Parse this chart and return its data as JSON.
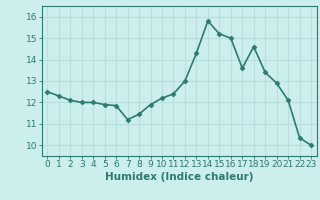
{
  "x": [
    0,
    1,
    2,
    3,
    4,
    5,
    6,
    7,
    8,
    9,
    10,
    11,
    12,
    13,
    14,
    15,
    16,
    17,
    18,
    19,
    20,
    21,
    22,
    23
  ],
  "y": [
    12.5,
    12.3,
    12.1,
    12.0,
    12.0,
    11.9,
    11.85,
    11.2,
    11.45,
    11.9,
    12.2,
    12.4,
    13.0,
    14.3,
    15.8,
    15.2,
    15.0,
    13.6,
    14.6,
    13.4,
    12.9,
    12.1,
    10.35,
    10.0
  ],
  "line_color": "#2d7a70",
  "marker": "D",
  "marker_size": 2.5,
  "bg_color": "#cceeed",
  "grid_color": "#b8dedd",
  "xlabel": "Humidex (Indice chaleur)",
  "xlim": [
    -0.5,
    23.5
  ],
  "ylim": [
    9.5,
    16.5
  ],
  "yticks": [
    10,
    11,
    12,
    13,
    14,
    15,
    16
  ],
  "xticks": [
    0,
    1,
    2,
    3,
    4,
    5,
    6,
    7,
    8,
    9,
    10,
    11,
    12,
    13,
    14,
    15,
    16,
    17,
    18,
    19,
    20,
    21,
    22,
    23
  ],
  "tick_color": "#2d7a70",
  "label_color": "#2d7a70",
  "font_size": 6.5,
  "xlabel_fontsize": 7.5,
  "line_width": 1.2
}
